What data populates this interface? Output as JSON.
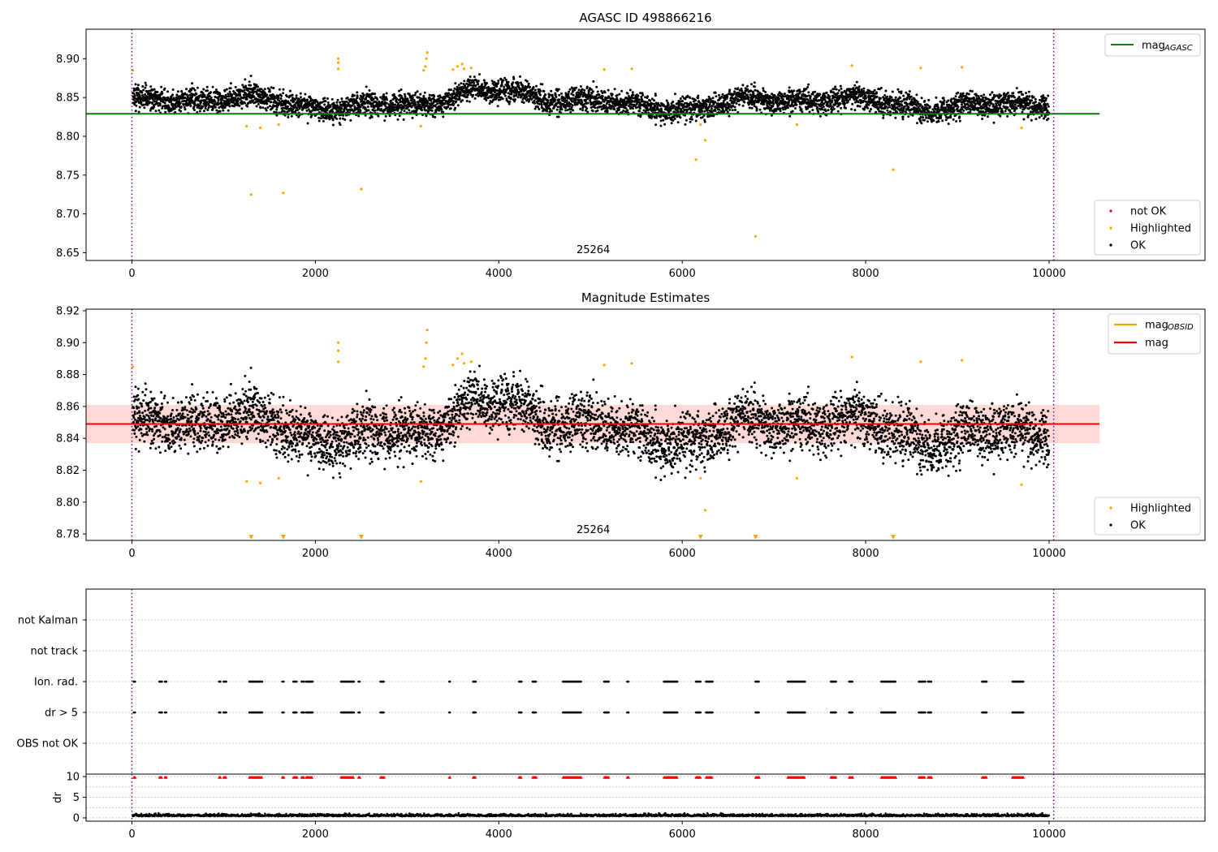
{
  "chart_data": [
    {
      "type": "scatter",
      "title": "AGASC ID 498866216",
      "xlim": [
        -500,
        11700
      ],
      "ylim": [
        8.64,
        8.938
      ],
      "xticks": [
        "0",
        "2000",
        "4000",
        "6000",
        "8000",
        "10000"
      ],
      "yticks": [
        "8.65",
        "8.70",
        "8.75",
        "8.80",
        "8.85",
        "8.90"
      ],
      "legend_top": {
        "position": "top-right",
        "line_label": "mag",
        "line_sub": "AGASC",
        "line_color": "#008000"
      },
      "legend_bottom": {
        "position": "lower-right",
        "entries": [
          {
            "label": "not OK",
            "color": "#ff0000"
          },
          {
            "label": "Highlighted",
            "color": "#ffa500"
          },
          {
            "label": "OK",
            "color": "#000000"
          }
        ]
      },
      "obsid_label": "25264",
      "mag_agasc": 8.829,
      "vlines_x": [
        0,
        10050
      ],
      "highlighted": [
        [
          10,
          8.885
        ],
        [
          1250,
          8.813
        ],
        [
          1300,
          8.725
        ],
        [
          1400,
          8.811
        ],
        [
          1600,
          8.815
        ],
        [
          1650,
          8.727
        ],
        [
          2250,
          8.9
        ],
        [
          2250,
          8.895
        ],
        [
          2250,
          8.887
        ],
        [
          2500,
          8.732
        ],
        [
          3150,
          8.813
        ],
        [
          3180,
          8.885
        ],
        [
          3200,
          8.89
        ],
        [
          3210,
          8.9
        ],
        [
          3220,
          8.908
        ],
        [
          3500,
          8.886
        ],
        [
          3550,
          8.89
        ],
        [
          3600,
          8.893
        ],
        [
          3620,
          8.887
        ],
        [
          3700,
          8.888
        ],
        [
          5150,
          8.886
        ],
        [
          5450,
          8.887
        ],
        [
          6150,
          8.77
        ],
        [
          6200,
          8.815
        ],
        [
          6250,
          8.795
        ],
        [
          6800,
          8.671
        ],
        [
          7250,
          8.815
        ],
        [
          7850,
          8.891
        ],
        [
          8300,
          8.757
        ],
        [
          8600,
          8.888
        ],
        [
          9050,
          8.889
        ],
        [
          9700,
          8.811
        ]
      ]
    },
    {
      "type": "scatter",
      "title": "Magnitude Estimates",
      "xlim": [
        -500,
        11700
      ],
      "ylim": [
        8.776,
        8.921
      ],
      "xticks": [
        "0",
        "2000",
        "4000",
        "6000",
        "8000",
        "10000"
      ],
      "yticks": [
        "8.78",
        "8.80",
        "8.82",
        "8.84",
        "8.86",
        "8.88",
        "8.90",
        "8.92"
      ],
      "legend_top": {
        "position": "top-right",
        "entries": [
          {
            "label": "mag",
            "sub": "OBSID",
            "color": "#ffa500"
          },
          {
            "label": "mag",
            "sub": "",
            "color": "#ff0000"
          }
        ]
      },
      "legend_bottom": {
        "position": "lower-right",
        "entries": [
          {
            "label": "Highlighted",
            "color": "#ffa500"
          },
          {
            "label": "OK",
            "color": "#000000"
          }
        ]
      },
      "obsid_label": "25264",
      "mag_mean": 8.849,
      "mag_band": [
        8.837,
        8.861
      ],
      "vlines_x": [
        0,
        10050
      ],
      "highlighted": [
        [
          10,
          8.885
        ],
        [
          1250,
          8.813
        ],
        [
          1400,
          8.812
        ],
        [
          1600,
          8.815
        ],
        [
          2250,
          8.9
        ],
        [
          2250,
          8.895
        ],
        [
          2250,
          8.888
        ],
        [
          3150,
          8.813
        ],
        [
          3180,
          8.885
        ],
        [
          3200,
          8.89
        ],
        [
          3210,
          8.9
        ],
        [
          3220,
          8.908
        ],
        [
          3500,
          8.886
        ],
        [
          3550,
          8.89
        ],
        [
          3600,
          8.893
        ],
        [
          3620,
          8.887
        ],
        [
          3700,
          8.888
        ],
        [
          5150,
          8.886
        ],
        [
          5450,
          8.887
        ],
        [
          6200,
          8.815
        ],
        [
          6250,
          8.795
        ],
        [
          7250,
          8.815
        ],
        [
          7850,
          8.891
        ],
        [
          8600,
          8.888
        ],
        [
          9050,
          8.889
        ],
        [
          9700,
          8.811
        ]
      ],
      "below_range_markers_x": [
        1300,
        1650,
        2500,
        6200,
        6800,
        8300
      ]
    },
    {
      "type": "scatter",
      "title": "",
      "xlim": [
        -500,
        11700
      ],
      "categories": [
        "not Kalman",
        "not track",
        "Ion. rad.",
        "dr > 5",
        "OBS not OK"
      ],
      "vlines_x": [
        0,
        10050
      ],
      "flag_x_ranges": [
        [
          20,
          40
        ],
        [
          300,
          330
        ],
        [
          360,
          380
        ],
        [
          950,
          970
        ],
        [
          1000,
          1030
        ],
        [
          1280,
          1420
        ],
        [
          1640,
          1660
        ],
        [
          1760,
          1800
        ],
        [
          1850,
          1880
        ],
        [
          1900,
          1970
        ],
        [
          2280,
          2420
        ],
        [
          2470,
          2490
        ],
        [
          2710,
          2750
        ],
        [
          3460,
          3470
        ],
        [
          3720,
          3750
        ],
        [
          4220,
          4250
        ],
        [
          4370,
          4410
        ],
        [
          4700,
          4900
        ],
        [
          5150,
          5200
        ],
        [
          5400,
          5420
        ],
        [
          5800,
          5950
        ],
        [
          6150,
          6200
        ],
        [
          6260,
          6330
        ],
        [
          6800,
          6840
        ],
        [
          7150,
          7340
        ],
        [
          7620,
          7680
        ],
        [
          7820,
          7860
        ],
        [
          8170,
          8330
        ],
        [
          8580,
          8650
        ],
        [
          8680,
          8720
        ],
        [
          9270,
          9320
        ],
        [
          9600,
          9720
        ]
      ]
    },
    {
      "type": "scatter",
      "ylabel": "dr",
      "xlim": [
        -500,
        11700
      ],
      "ylim": [
        -0.8,
        10.6
      ],
      "xticks": [
        "0",
        "2000",
        "4000",
        "6000",
        "8000",
        "10000"
      ],
      "yticks": [
        "0",
        "5",
        "10"
      ],
      "vlines_x": [
        0,
        10050
      ],
      "dr_level": 0.4
    }
  ]
}
